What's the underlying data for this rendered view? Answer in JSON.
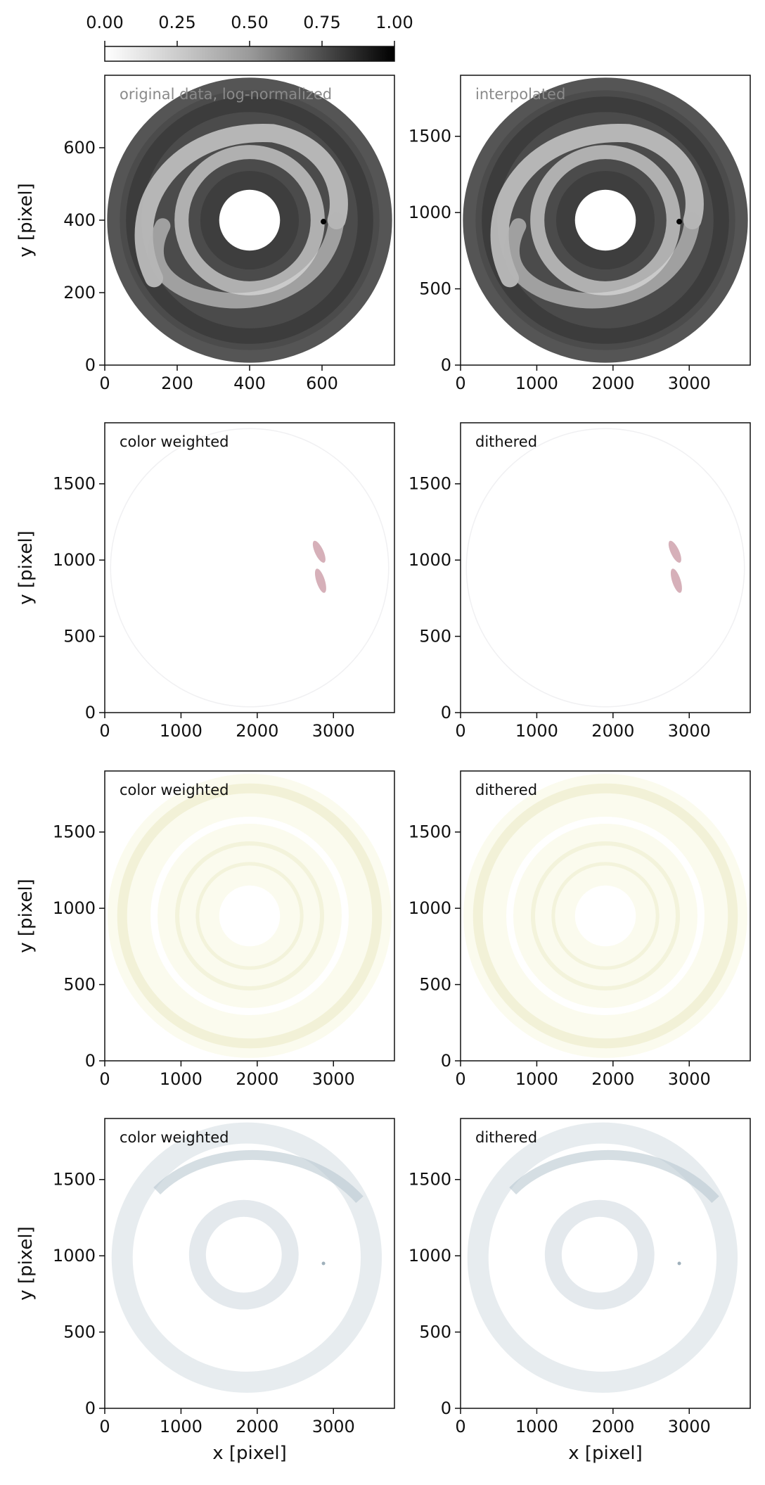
{
  "colorbar": {
    "ticks": [
      "0.00",
      "0.25",
      "0.50",
      "0.75",
      "1.00"
    ],
    "range": [
      0,
      1
    ],
    "colormap": "greys"
  },
  "chart_data": [
    {
      "type": "heatmap",
      "annotation": "original data, log-normalized",
      "annotation_color": "#8a8a8a",
      "xticks": [
        "0",
        "200",
        "400",
        "600"
      ],
      "yticks": [
        "0",
        "200",
        "400",
        "600"
      ],
      "xlim": [
        0,
        800
      ],
      "ylim": [
        0,
        800
      ],
      "xlabel": "",
      "ylabel": "y [pixel]",
      "style": "grey-disk"
    },
    {
      "type": "heatmap",
      "annotation": "interpolated",
      "annotation_color": "#8a8a8a",
      "xticks": [
        "0",
        "1000",
        "2000",
        "3000"
      ],
      "yticks": [
        "0",
        "500",
        "1000",
        "1500"
      ],
      "xlim": [
        0,
        3800
      ],
      "ylim": [
        0,
        1900
      ],
      "xlabel": "",
      "ylabel": "",
      "style": "grey-disk"
    },
    {
      "type": "heatmap",
      "annotation": "color weighted",
      "annotation_color": "#111111",
      "xticks": [
        "0",
        "1000",
        "2000",
        "3000"
      ],
      "yticks": [
        "0",
        "500",
        "1000",
        "1500"
      ],
      "xlim": [
        0,
        3800
      ],
      "ylim": [
        0,
        1900
      ],
      "xlabel": "",
      "ylabel": "y [pixel]",
      "style": "red-spot",
      "tint": "#b5707f"
    },
    {
      "type": "heatmap",
      "annotation": "dithered",
      "annotation_color": "#111111",
      "xticks": [
        "0",
        "1000",
        "2000",
        "3000"
      ],
      "yticks": [
        "0",
        "500",
        "1000",
        "1500"
      ],
      "xlim": [
        0,
        3800
      ],
      "ylim": [
        0,
        1900
      ],
      "xlabel": "",
      "ylabel": "",
      "style": "red-spot",
      "tint": "#b5707f"
    },
    {
      "type": "heatmap",
      "annotation": "color weighted",
      "annotation_color": "#111111",
      "xticks": [
        "0",
        "1000",
        "2000",
        "3000"
      ],
      "yticks": [
        "0",
        "500",
        "1000",
        "1500"
      ],
      "xlim": [
        0,
        3800
      ],
      "ylim": [
        0,
        1900
      ],
      "xlabel": "",
      "ylabel": "y [pixel]",
      "style": "yellow-rings",
      "tint": "#ecebc8"
    },
    {
      "type": "heatmap",
      "annotation": "dithered",
      "annotation_color": "#111111",
      "xticks": [
        "0",
        "1000",
        "2000",
        "3000"
      ],
      "yticks": [
        "0",
        "500",
        "1000",
        "1500"
      ],
      "xlim": [
        0,
        3800
      ],
      "ylim": [
        0,
        1900
      ],
      "xlabel": "",
      "ylabel": "",
      "style": "yellow-rings",
      "tint": "#ecebc8"
    },
    {
      "type": "heatmap",
      "annotation": "color weighted",
      "annotation_color": "#111111",
      "xticks": [
        "0",
        "1000",
        "2000",
        "3000"
      ],
      "yticks": [
        "0",
        "500",
        "1000",
        "1500"
      ],
      "xlim": [
        0,
        3800
      ],
      "ylim": [
        0,
        1900
      ],
      "xlabel": "x [pixel]",
      "ylabel": "y [pixel]",
      "style": "blue-rings",
      "tint": "#c9d4db"
    },
    {
      "type": "heatmap",
      "annotation": "dithered",
      "annotation_color": "#111111",
      "xticks": [
        "0",
        "1000",
        "2000",
        "3000"
      ],
      "yticks": [
        "0",
        "500",
        "1000",
        "1500"
      ],
      "xlim": [
        0,
        3800
      ],
      "ylim": [
        0,
        1900
      ],
      "xlabel": "x [pixel]",
      "ylabel": "",
      "style": "blue-rings",
      "tint": "#c9d4db"
    }
  ]
}
